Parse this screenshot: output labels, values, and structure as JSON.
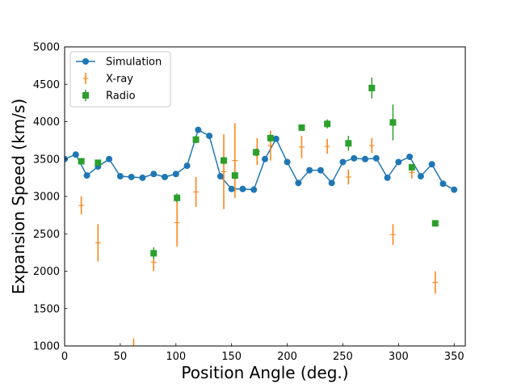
{
  "chart_data": {
    "type": "scatter",
    "title": "",
    "xlabel": "Position Angle (deg.)",
    "ylabel": "Expansion Speed (km/s)",
    "xlim": [
      0,
      360
    ],
    "ylim": [
      1000,
      5000
    ],
    "xticks": [
      0,
      50,
      100,
      150,
      200,
      250,
      300,
      350
    ],
    "yticks": [
      1000,
      1500,
      2000,
      2500,
      3000,
      3500,
      4000,
      4500,
      5000
    ],
    "grid": false,
    "legend_position": "top-left",
    "colors": {
      "simulation": "#1f77b4",
      "xray": "#ff7f0e",
      "radio": "#2ca02c"
    },
    "series": [
      {
        "name": "Simulation",
        "style": "line-marker",
        "x": [
          0,
          10,
          20,
          30,
          40,
          50,
          60,
          70,
          80,
          90,
          100,
          110,
          120,
          130,
          140,
          150,
          160,
          170,
          180,
          190,
          200,
          210,
          220,
          230,
          240,
          250,
          260,
          270,
          280,
          290,
          300,
          310,
          320,
          330,
          340,
          350
        ],
        "y": [
          3500,
          3560,
          3280,
          3400,
          3500,
          3270,
          3260,
          3250,
          3300,
          3260,
          3300,
          3410,
          3890,
          3810,
          3270,
          3100,
          3100,
          3090,
          3500,
          3770,
          3460,
          3180,
          3350,
          3350,
          3180,
          3460,
          3510,
          3500,
          3510,
          3250,
          3460,
          3530,
          3270,
          3430,
          3170,
          3090
        ]
      },
      {
        "name": "X-ray",
        "style": "errorbar-marker",
        "x": [
          15,
          30,
          62,
          80,
          101,
          118,
          143,
          153,
          173,
          185,
          213,
          236,
          255,
          276,
          295,
          312,
          333
        ],
        "y": [
          2880,
          2380,
          1000,
          2120,
          2650,
          3060,
          3330,
          3480,
          3600,
          3680,
          3660,
          3670,
          3260,
          3680,
          2490,
          3320,
          1850
        ],
        "err": [
          120,
          250,
          100,
          120,
          320,
          200,
          500,
          500,
          180,
          200,
          150,
          100,
          100,
          100,
          140,
          80,
          150
        ]
      },
      {
        "name": "Radio",
        "style": "errorbar-marker",
        "x": [
          15,
          30,
          80,
          101,
          118,
          143,
          153,
          172,
          185,
          213,
          236,
          255,
          276,
          295,
          312,
          333
        ],
        "y": [
          3470,
          3450,
          2240,
          2980,
          3760,
          3480,
          3280,
          3590,
          3780,
          3920,
          3970,
          3710,
          4450,
          3990,
          3390,
          2640
        ],
        "err": [
          30,
          30,
          80,
          60,
          50,
          50,
          50,
          50,
          50,
          40,
          60,
          100,
          140,
          240,
          40,
          30
        ]
      }
    ]
  }
}
